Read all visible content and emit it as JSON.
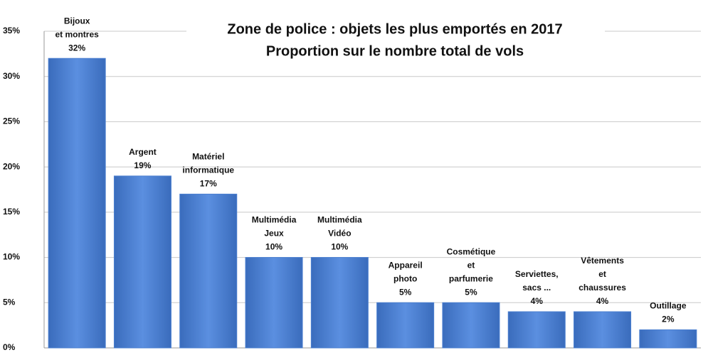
{
  "chart_data": {
    "type": "bar",
    "title": "Zone de police : objets les plus emportés en 2017",
    "subtitle": "Proportion sur le nombre total de vols",
    "categories": [
      [
        "Bijoux",
        "et montres"
      ],
      [
        "Argent"
      ],
      [
        "Matériel",
        "informatique"
      ],
      [
        "Multimédia",
        "Jeux"
      ],
      [
        "Multimédia",
        "Vidéo"
      ],
      [
        "Appareil",
        "photo"
      ],
      [
        "Cosmétique",
        "et",
        "parfumerie"
      ],
      [
        "Serviettes,",
        "sacs ..."
      ],
      [
        "Vêtements",
        "et",
        "chaussures"
      ],
      [
        "Outillage"
      ]
    ],
    "values": [
      32,
      19,
      17,
      10,
      10,
      5,
      5,
      4,
      4,
      2
    ],
    "value_labels": [
      "32%",
      "19%",
      "17%",
      "10%",
      "10%",
      "5%",
      "5%",
      "4%",
      "4%",
      "2%"
    ],
    "color": "#4a7fd0",
    "ylim": [
      0,
      35
    ],
    "yticks": [
      {
        "value": 0,
        "label": "0%"
      },
      {
        "value": 5,
        "label": "5%"
      },
      {
        "value": 10,
        "label": "10%"
      },
      {
        "value": 15,
        "label": "15%"
      },
      {
        "value": 20,
        "label": "20%"
      },
      {
        "value": 25,
        "label": "25%"
      },
      {
        "value": 30,
        "label": "30%"
      },
      {
        "value": 35,
        "label": "35%"
      }
    ],
    "grid": true
  }
}
